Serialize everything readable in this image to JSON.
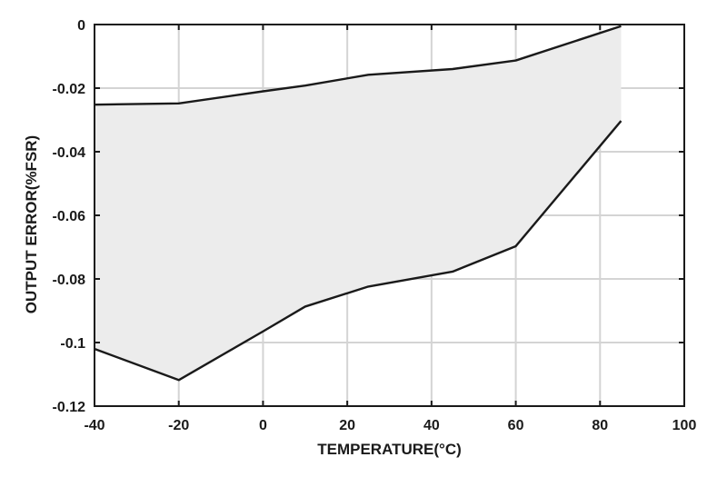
{
  "chart_data": {
    "type": "area",
    "xlabel": "TEMPERATURE(°C)",
    "ylabel": "OUTPUT ERROR(%FSR)",
    "xlim": [
      -40,
      100
    ],
    "ylim": [
      -0.12,
      0
    ],
    "xticks": [
      -40,
      -20,
      0,
      20,
      40,
      60,
      80,
      100
    ],
    "yticks": [
      0,
      -0.02,
      -0.04,
      -0.06,
      -0.08,
      -0.1,
      -0.12
    ],
    "xtick_labels": [
      "-40",
      "-20",
      "0",
      "20",
      "40",
      "60",
      "80",
      "100"
    ],
    "ytick_labels": [
      "0",
      "-0.02",
      "-0.04",
      "-0.06",
      "-0.08",
      "-0.1",
      "-0.12"
    ],
    "grid": true,
    "legend": "none",
    "fill_color": "#ececec",
    "line_color": "#1a1a1a",
    "grid_color": "#d4d4d4",
    "series": [
      {
        "x": [
          -40,
          -20,
          0,
          10,
          25,
          45,
          60,
          85
        ],
        "values": [
          -0.0252,
          -0.0248,
          -0.021,
          -0.0192,
          -0.0158,
          -0.014,
          -0.0113,
          -0.0005
        ]
      },
      {
        "x": [
          -40,
          -20,
          0,
          10,
          25,
          45,
          60,
          85
        ],
        "values": [
          -0.102,
          -0.1118,
          -0.0965,
          -0.0887,
          -0.0824,
          -0.0777,
          -0.0697,
          -0.0303
        ]
      }
    ]
  }
}
